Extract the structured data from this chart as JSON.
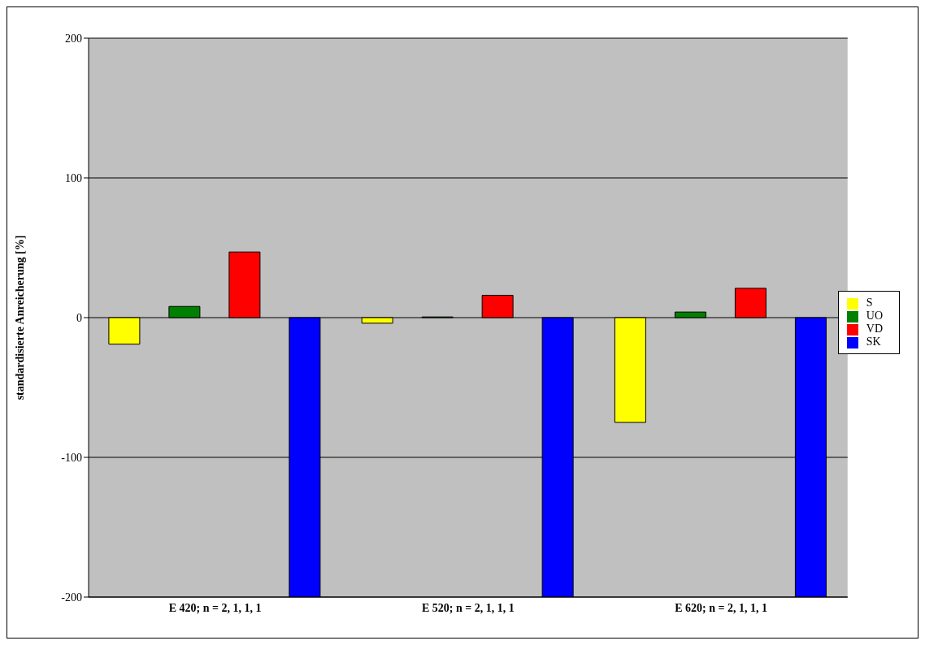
{
  "chart_data": {
    "type": "bar",
    "ylabel": "standardisierte Anreicherung [%]",
    "categories": [
      "E 420; n = 2, 1, 1, 1",
      "E 520; n = 2, 1, 1, 1",
      "E 620; n = 2, 1, 1, 1"
    ],
    "series": [
      {
        "name": "S",
        "color": "#ffff00",
        "values": [
          -19,
          -4,
          -75
        ]
      },
      {
        "name": "UO",
        "color": "#008000",
        "values": [
          8,
          0.5,
          4
        ]
      },
      {
        "name": "VD",
        "color": "#ff0000",
        "values": [
          47,
          16,
          21
        ]
      },
      {
        "name": "SK",
        "color": "#0000ff",
        "values": [
          -200,
          -200,
          -200
        ]
      }
    ],
    "ylim": [
      -200,
      200
    ],
    "yticks": [
      -200,
      -100,
      0,
      100,
      200
    ],
    "grid": "y",
    "legend": "right"
  }
}
